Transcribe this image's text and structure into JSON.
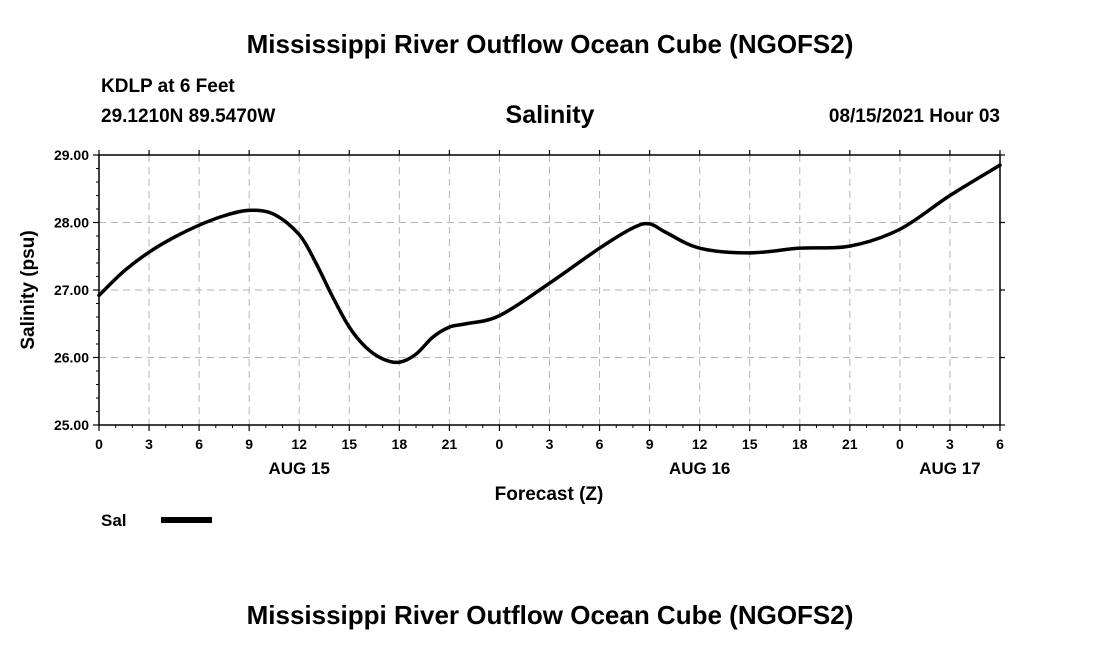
{
  "page": {
    "top_title": "Mississippi River Outflow Ocean Cube (NGOFS2)",
    "bottom_title": "Mississippi River Outflow Ocean Cube (NGOFS2)",
    "station": "KDLP at 6 Feet",
    "coordinates": "29.1210N  89.5470W",
    "variable": "Salinity",
    "timestamp": "08/15/2021 Hour 03"
  },
  "legend": {
    "label": "Sal"
  },
  "chart_data": {
    "type": "line",
    "title": "Salinity",
    "xlabel": "Forecast (Z)",
    "ylabel": "Salinity (psu)",
    "xlim": [
      0,
      54
    ],
    "ylim": [
      25.0,
      29.0
    ],
    "grid": true,
    "x_ticks": [
      0,
      3,
      6,
      9,
      12,
      15,
      18,
      21,
      24,
      27,
      30,
      33,
      36,
      39,
      42,
      45,
      48,
      51,
      54
    ],
    "x_tick_labels": [
      "0",
      "3",
      "6",
      "9",
      "12",
      "15",
      "18",
      "21",
      "0",
      "3",
      "6",
      "9",
      "12",
      "15",
      "18",
      "21",
      "0",
      "3",
      "6"
    ],
    "y_ticks": [
      25.0,
      26.0,
      27.0,
      28.0,
      29.0
    ],
    "y_tick_labels": [
      "25.00",
      "26.00",
      "27.00",
      "28.00",
      "29.00"
    ],
    "day_labels": [
      {
        "x": 12,
        "label": "AUG 15"
      },
      {
        "x": 36,
        "label": "AUG 16"
      },
      {
        "x": 51,
        "label": "AUG 17"
      }
    ],
    "series": [
      {
        "name": "Sal",
        "x": [
          0,
          1.5,
          3,
          4.5,
          6,
          7.5,
          9,
          10.5,
          12,
          13,
          14,
          15,
          16,
          17,
          18,
          19,
          20,
          21,
          22,
          24,
          27,
          30,
          32,
          33,
          34,
          36,
          39,
          42,
          45,
          48,
          51,
          54
        ],
        "y": [
          26.92,
          27.28,
          27.56,
          27.78,
          27.96,
          28.1,
          28.18,
          28.12,
          27.82,
          27.4,
          26.9,
          26.45,
          26.15,
          25.98,
          25.93,
          26.05,
          26.3,
          26.45,
          26.5,
          26.62,
          27.1,
          27.62,
          27.92,
          27.98,
          27.85,
          27.62,
          27.55,
          27.62,
          27.65,
          27.9,
          28.4,
          28.85
        ]
      }
    ]
  }
}
